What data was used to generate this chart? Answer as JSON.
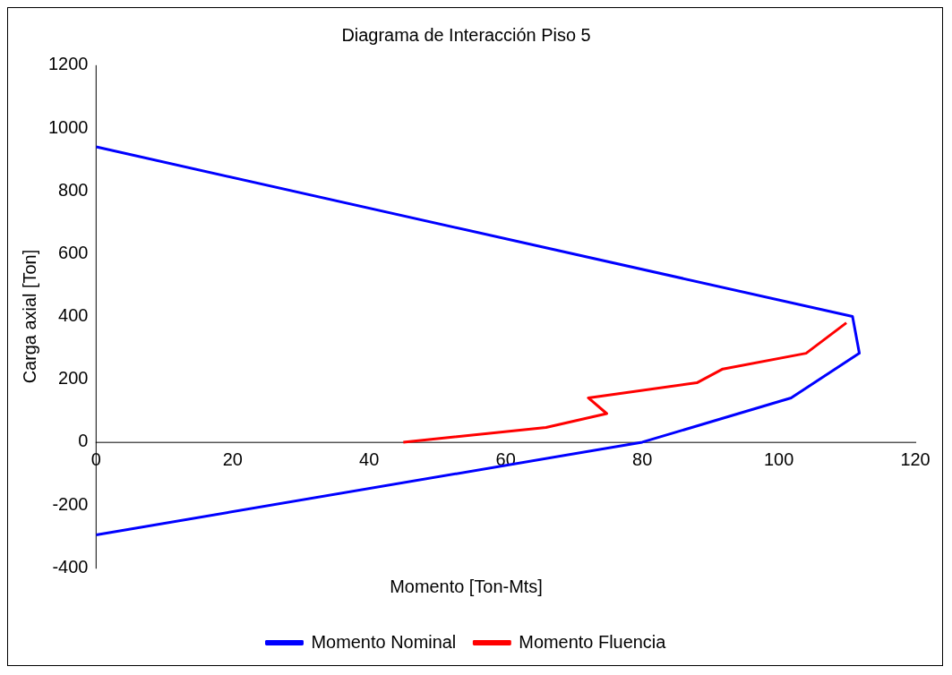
{
  "chart_data": {
    "type": "line",
    "title": "Diagrama de Interacción Piso 5",
    "xlabel": "Momento [Ton-Mts]",
    "ylabel": "Carga axial [Ton]",
    "series": [
      {
        "name": "Momento Nominal",
        "color": "#0000ff",
        "x": [
          0,
          110.8,
          111.8,
          101.8,
          80,
          0
        ],
        "values": [
          940,
          400,
          283,
          141,
          0,
          -295
        ]
      },
      {
        "name": "Momento Fluencia",
        "color": "#ff0000",
        "x": [
          45,
          65.9,
          74.8,
          72.1,
          88,
          91.8,
          104,
          109.9
        ],
        "values": [
          0,
          47,
          91,
          141,
          189,
          233,
          283,
          380
        ]
      }
    ],
    "xlim": [
      0,
      120
    ],
    "xticks": [
      0,
      20,
      40,
      60,
      80,
      100,
      120
    ],
    "ylim": [
      -400,
      1200
    ],
    "yticks": [
      -400,
      -200,
      0,
      200,
      400,
      600,
      800,
      1000,
      1200
    ],
    "grid": false,
    "legend": "bottom",
    "marker": "none",
    "line_style": "solid"
  }
}
